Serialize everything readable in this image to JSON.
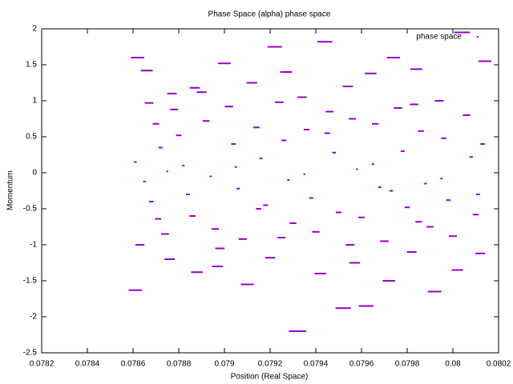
{
  "chart_data": {
    "type": "scatter",
    "title": "Phase Space (alpha) phase space",
    "x_label": "Position (Real Space)",
    "y_label": "Momentum",
    "xlim": [
      0.0782,
      0.0802
    ],
    "xticks": [
      0.0782,
      0.0784,
      0.0786,
      0.0788,
      0.079,
      0.0792,
      0.0794,
      0.0796,
      0.0798,
      0.08,
      0.0802
    ],
    "ylim": [
      -2.5,
      2
    ],
    "yticks": [
      -2.5,
      -2,
      -1.5,
      -1,
      -0.5,
      0,
      0.5,
      1,
      1.5,
      2
    ],
    "grid": false,
    "legend": "top-right",
    "series": [
      {
        "name": "phase space",
        "color": "#9400d3",
        "x": [
          0.07862,
          0.07866,
          0.07867,
          0.0787,
          0.07872,
          0.07861,
          0.07865,
          0.07868,
          0.07871,
          0.07874,
          0.07863,
          0.07861,
          0.07876,
          0.07878,
          0.0788,
          0.07882,
          0.07884,
          0.07886,
          0.07888,
          0.0789,
          0.07892,
          0.07894,
          0.07896,
          0.07898,
          0.079,
          0.07902,
          0.07904,
          0.07906,
          0.07908,
          0.0791,
          0.07912,
          0.07914,
          0.07916,
          0.07918,
          0.0792,
          0.07922,
          0.07924,
          0.07926,
          0.07928,
          0.0793,
          0.07932,
          0.07934,
          0.07936,
          0.07938,
          0.0794,
          0.07942,
          0.07944,
          0.07946,
          0.07948,
          0.0795,
          0.07952,
          0.07954,
          0.07956,
          0.07958,
          0.0796,
          0.07962,
          0.07964,
          0.07966,
          0.07968,
          0.0797,
          0.07972,
          0.07974,
          0.07976,
          0.07978,
          0.0798,
          0.07982,
          0.07984,
          0.07986,
          0.07988,
          0.0799,
          0.07992,
          0.07994,
          0.07996,
          0.07998,
          0.08,
          0.08002,
          0.08004,
          0.08006,
          0.08008,
          0.0801,
          0.08012,
          0.08014,
          0.07875,
          0.07905,
          0.07935,
          0.07965,
          0.07995,
          0.07915,
          0.07945,
          0.07985,
          0.07925,
          0.07955,
          0.07983,
          0.08013,
          0.08011,
          0.07877,
          0.07887,
          0.07897,
          0.07927,
          0.07957,
          0.07973
        ],
        "values": [
          1.6,
          1.42,
          0.97,
          0.68,
          0.35,
          0.15,
          -0.12,
          -0.4,
          -0.64,
          -0.85,
          -1.0,
          -1.63,
          -1.2,
          0.88,
          0.52,
          0.1,
          -0.3,
          -0.6,
          -1.38,
          1.12,
          0.72,
          -0.05,
          -0.78,
          -1.05,
          1.52,
          0.92,
          0.4,
          -0.22,
          -0.92,
          -1.55,
          1.25,
          0.63,
          0.2,
          -0.45,
          -1.18,
          1.75,
          0.98,
          0.45,
          -0.1,
          -0.7,
          -2.2,
          1.05,
          0.6,
          -0.35,
          -0.82,
          -1.4,
          1.82,
          0.85,
          0.28,
          -0.55,
          -1.88,
          1.2,
          0.75,
          0.05,
          -0.62,
          -1.85,
          1.38,
          0.68,
          -0.2,
          -0.95,
          -1.5,
          1.6,
          0.9,
          0.3,
          -0.48,
          -1.1,
          1.44,
          0.58,
          -0.15,
          -0.75,
          -1.65,
          1.0,
          0.48,
          -0.38,
          -0.88,
          -1.35,
          1.95,
          0.8,
          0.22,
          -0.58,
          -1.12,
          1.55,
          0.02,
          0.08,
          -0.02,
          0.12,
          -0.08,
          -0.5,
          0.55,
          -0.68,
          -0.9,
          -1.0,
          0.95,
          0.4,
          -0.3,
          1.1,
          1.18,
          -1.3,
          1.4,
          -1.25,
          -0.25
        ]
      }
    ]
  }
}
